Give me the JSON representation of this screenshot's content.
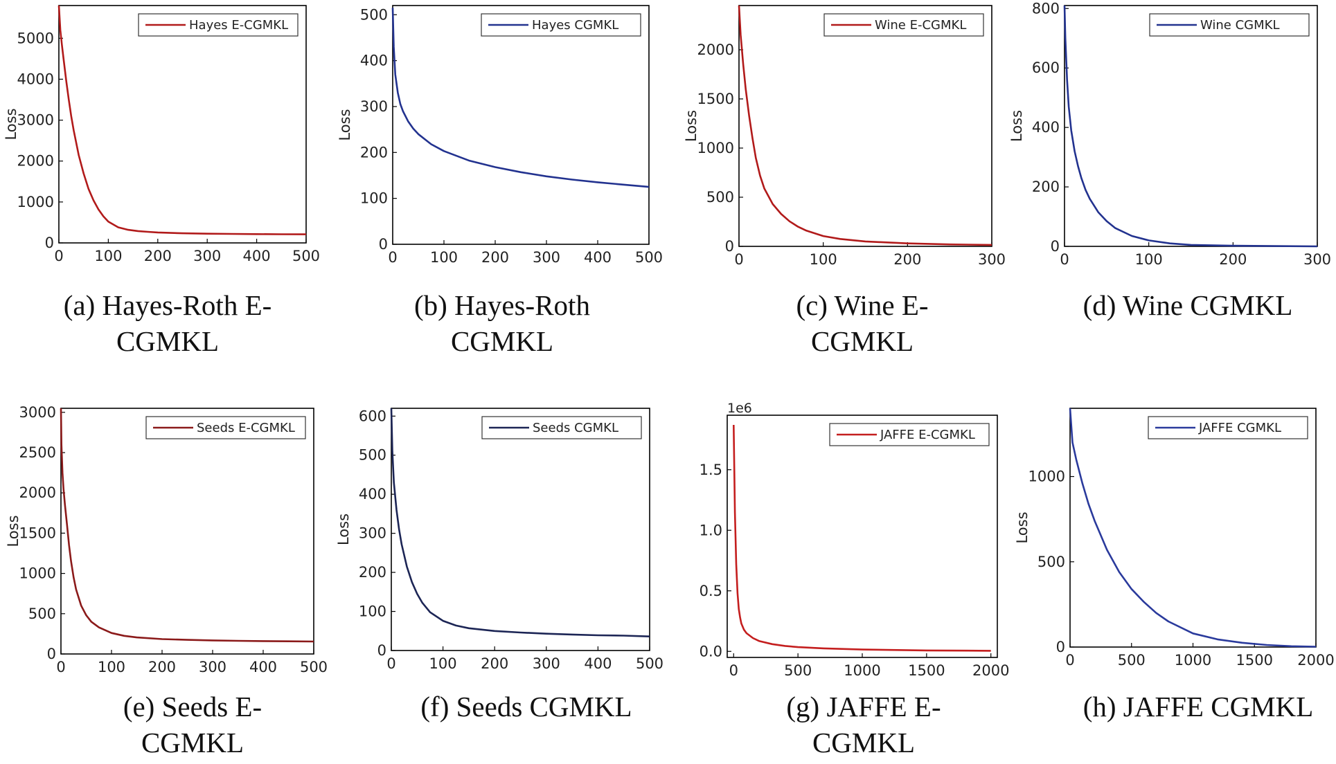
{
  "chart_data": [
    {
      "type": "line",
      "caption": [
        "(a) Hayes-Roth  E-",
        "CGMKL"
      ],
      "ylabel": "Loss",
      "xlim": [
        0,
        500
      ],
      "ylim": [
        0,
        5800
      ],
      "xticks": [
        0,
        100,
        200,
        300,
        400,
        500
      ],
      "yticks": [
        0,
        1000,
        2000,
        3000,
        4000,
        5000
      ],
      "legend": "Hayes E-CGMKL",
      "legend_position": "top-right",
      "color": "#b11a1a",
      "series": [
        {
          "name": "Hayes E-CGMKL",
          "x": [
            0,
            3,
            6,
            10,
            15,
            20,
            25,
            30,
            40,
            50,
            60,
            70,
            80,
            90,
            100,
            120,
            140,
            160,
            180,
            200,
            250,
            300,
            350,
            400,
            450,
            500
          ],
          "y": [
            5800,
            5200,
            4850,
            4450,
            3950,
            3500,
            3100,
            2750,
            2150,
            1700,
            1320,
            1040,
            820,
            650,
            520,
            380,
            320,
            290,
            270,
            255,
            235,
            225,
            220,
            215,
            212,
            210
          ]
        }
      ]
    },
    {
      "type": "line",
      "caption": [
        "(b) Hayes-Roth",
        "CGMKL"
      ],
      "ylabel": "Loss",
      "xlim": [
        0,
        500
      ],
      "ylim": [
        0,
        520
      ],
      "xticks": [
        0,
        100,
        200,
        300,
        400,
        500
      ],
      "yticks": [
        0,
        100,
        200,
        300,
        400,
        500
      ],
      "legend": "Hayes CGMKL",
      "legend_position": "top-right",
      "color": "#22328f",
      "series": [
        {
          "name": "Hayes CGMKL",
          "x": [
            0,
            2,
            5,
            10,
            15,
            20,
            30,
            40,
            50,
            75,
            100,
            150,
            200,
            250,
            300,
            350,
            400,
            450,
            500
          ],
          "y": [
            515,
            430,
            370,
            330,
            305,
            290,
            268,
            252,
            240,
            218,
            203,
            182,
            168,
            157,
            148,
            141,
            135,
            130,
            125
          ]
        }
      ]
    },
    {
      "type": "line",
      "caption": [
        "(c) Wine E-",
        "CGMKL"
      ],
      "ylabel": "Loss",
      "xlim": [
        0,
        300
      ],
      "ylim": [
        0,
        2450
      ],
      "xticks": [
        0,
        100,
        200,
        300
      ],
      "yticks": [
        0,
        500,
        1000,
        1500,
        2000
      ],
      "legend": "Wine E-CGMKL",
      "legend_position": "top-right",
      "color": "#b11a1a",
      "series": [
        {
          "name": "Wine E-CGMKL",
          "x": [
            0,
            2,
            5,
            8,
            12,
            16,
            20,
            25,
            30,
            40,
            50,
            60,
            70,
            80,
            100,
            120,
            150,
            200,
            250,
            300
          ],
          "y": [
            2450,
            2150,
            1850,
            1600,
            1330,
            1100,
            900,
            720,
            590,
            430,
            330,
            255,
            200,
            160,
            105,
            75,
            50,
            30,
            20,
            15
          ]
        }
      ]
    },
    {
      "type": "line",
      "caption": [
        "(d) Wine CGMKL"
      ],
      "ylabel": "Loss",
      "xlim": [
        0,
        300
      ],
      "ylim": [
        0,
        810
      ],
      "xticks": [
        0,
        100,
        200,
        300
      ],
      "yticks": [
        0,
        200,
        400,
        600,
        800
      ],
      "legend": "Wine CGMKL",
      "legend_position": "top-right",
      "color": "#22328f",
      "series": [
        {
          "name": "Wine CGMKL",
          "x": [
            0,
            1,
            3,
            5,
            8,
            12,
            16,
            20,
            25,
            30,
            40,
            50,
            60,
            80,
            100,
            125,
            150,
            200,
            250,
            300
          ],
          "y": [
            810,
            700,
            560,
            470,
            390,
            320,
            270,
            230,
            190,
            160,
            115,
            85,
            62,
            35,
            20,
            10,
            5,
            2,
            1,
            0
          ]
        }
      ]
    },
    {
      "type": "line",
      "caption": [
        "(e) Seeds E-",
        "CGMKL"
      ],
      "ylabel": "Loss",
      "xlim": [
        0,
        500
      ],
      "ylim": [
        0,
        3050
      ],
      "xticks": [
        0,
        100,
        200,
        300,
        400,
        500
      ],
      "yticks": [
        0,
        500,
        1000,
        1500,
        2000,
        2500,
        3000
      ],
      "legend": "Seeds E-CGMKL",
      "legend_position": "top-right",
      "color": "#8b1a1a",
      "series": [
        {
          "name": "Seeds E-CGMKL",
          "x": [
            0,
            1,
            3,
            5,
            8,
            12,
            16,
            20,
            25,
            30,
            40,
            50,
            60,
            75,
            100,
            125,
            150,
            200,
            250,
            300,
            350,
            400,
            450,
            500
          ],
          "y": [
            3050,
            2600,
            2250,
            2050,
            1850,
            1600,
            1350,
            1150,
            950,
            800,
            600,
            480,
            400,
            330,
            260,
            225,
            205,
            185,
            175,
            168,
            163,
            160,
            157,
            155
          ]
        }
      ]
    },
    {
      "type": "line",
      "caption": [
        "(f) Seeds CGMKL"
      ],
      "ylabel": "Loss",
      "xlim": [
        0,
        500
      ],
      "ylim": [
        0,
        620
      ],
      "xticks": [
        0,
        100,
        200,
        300,
        400,
        500
      ],
      "yticks": [
        0,
        100,
        200,
        300,
        400,
        500,
        600
      ],
      "legend": "Seeds CGMKL",
      "legend_position": "top-right",
      "color": "#1c2555",
      "series": [
        {
          "name": "Seeds CGMKL",
          "x": [
            0,
            2,
            5,
            10,
            15,
            20,
            30,
            40,
            50,
            60,
            75,
            100,
            125,
            150,
            200,
            250,
            300,
            350,
            400,
            450,
            500
          ],
          "y": [
            620,
            510,
            430,
            360,
            310,
            272,
            215,
            175,
            145,
            122,
            98,
            76,
            64,
            57,
            50,
            46,
            43,
            41,
            39,
            38,
            36
          ]
        }
      ]
    },
    {
      "type": "line",
      "caption": [
        "(g) JAFFE E-",
        "CGMKL"
      ],
      "ylabel": "",
      "y_multiplier": "1e6",
      "xlim": [
        -50,
        2050
      ],
      "ylim": [
        -0.05,
        1.95
      ],
      "xticks": [
        0,
        500,
        1000,
        1500,
        2000
      ],
      "yticks": [
        0.0,
        0.5,
        1.0,
        1.5
      ],
      "legend": "JAFFE E-CGMKL",
      "legend_position": "top-right",
      "color": "#c41e1e",
      "series": [
        {
          "name": "JAFFE E-CGMKL",
          "x": [
            0,
            10,
            20,
            30,
            40,
            50,
            60,
            80,
            100,
            150,
            200,
            300,
            400,
            500,
            700,
            1000,
            1500,
            2000
          ],
          "y": [
            1.87,
            1.15,
            0.72,
            0.48,
            0.35,
            0.28,
            0.23,
            0.18,
            0.15,
            0.11,
            0.085,
            0.06,
            0.045,
            0.035,
            0.025,
            0.015,
            0.008,
            0.005
          ]
        }
      ]
    },
    {
      "type": "line",
      "caption": [
        "(h) JAFFE CGMKL"
      ],
      "ylabel": "Loss",
      "xlim": [
        0,
        2000
      ],
      "ylim": [
        0,
        1400
      ],
      "xticks": [
        0,
        500,
        1000,
        1500,
        2000
      ],
      "yticks": [
        0,
        500,
        1000
      ],
      "legend": "JAFFE CGMKL",
      "legend_position": "top-right",
      "color": "#2a3a9c",
      "series": [
        {
          "name": "JAFFE CGMKL",
          "x": [
            0,
            20,
            50,
            100,
            150,
            200,
            300,
            400,
            500,
            600,
            700,
            800,
            1000,
            1200,
            1400,
            1600,
            1800,
            2000
          ],
          "y": [
            1400,
            1200,
            1100,
            960,
            840,
            740,
            570,
            440,
            340,
            265,
            200,
            150,
            80,
            45,
            25,
            12,
            5,
            2
          ]
        }
      ]
    }
  ]
}
